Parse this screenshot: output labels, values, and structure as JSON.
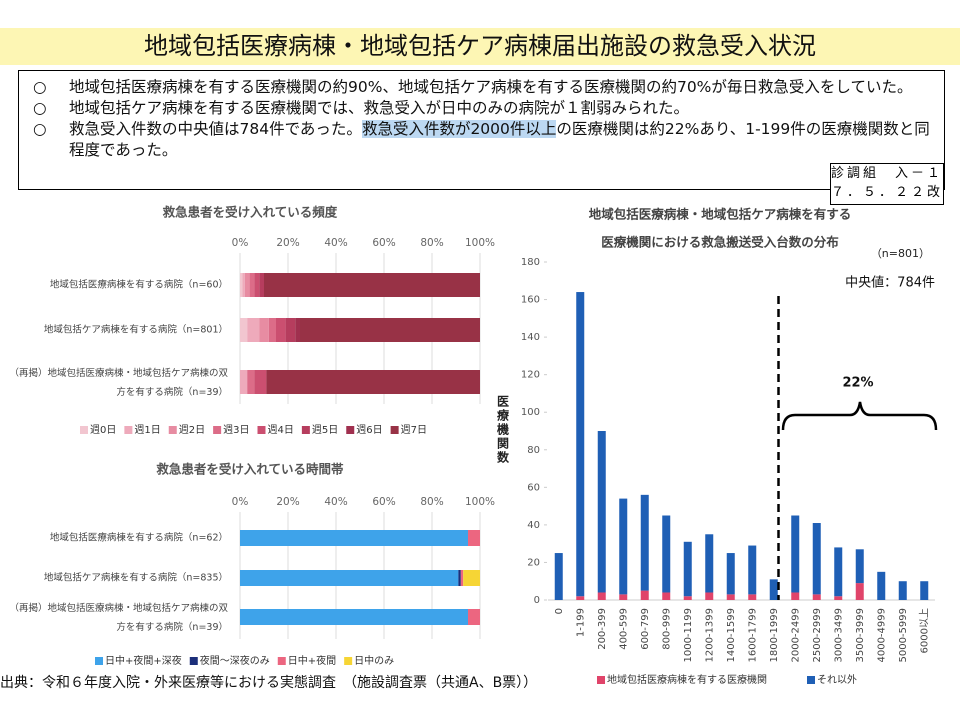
{
  "header": {
    "title": "地域包括医療病棟・地域包括ケア病棟届出施設の救急受入状況"
  },
  "bullet_mark": "○",
  "bullets": [
    [
      "地域包括医療病棟を有する医療機関の約90%、地域包括ケア病棟を有する医療機関の約70%が毎日救急受入をしていた。"
    ],
    [
      "地域包括ケア病棟を有する医療機関では、救急受入が日中のみの病院が１割弱みられた。"
    ],
    [
      "救急受入件数の中央値は784件であった。",
      "救急受入件数が2000件以上",
      "の医療機関は約22%あり、1-199件の医療機関数と同程度であった。"
    ]
  ],
  "highlighted_segment": {
    "bullet": 2,
    "segment": 1
  },
  "badge": [
    "診調組　入－１",
    "７．５．２２改"
  ],
  "source": "出典：令和６年度入院・外来医療等における実態調査　（施設調査票（共通A、B票））",
  "chart_data": [
    {
      "type": "barh",
      "stacked": true,
      "title": "救急患者を受け入れている頻度",
      "categories": [
        "地域包括医療病棟を有する病院（n=60）",
        "地域包括ケア病棟を有する病院（n=801）",
        "（再掲）地域包括医療病棟・地域包括ケア病棟の双方を有する病院（n=39）"
      ],
      "series": [
        {
          "name": "週0日",
          "color": "#f2c6d0",
          "values": [
            1,
            3,
            0
          ]
        },
        {
          "name": "週1日",
          "color": "#eeaabb",
          "values": [
            1,
            5,
            3
          ]
        },
        {
          "name": "週2日",
          "color": "#e78ca2",
          "values": [
            2,
            4,
            0
          ]
        },
        {
          "name": "週3日",
          "color": "#dc6c88",
          "values": [
            2,
            3,
            3
          ]
        },
        {
          "name": "週4日",
          "color": "#cb4f70",
          "values": [
            2,
            4,
            5
          ]
        },
        {
          "name": "週5日",
          "color": "#b63d5e",
          "values": [
            2,
            4,
            0
          ]
        },
        {
          "name": "週6日",
          "color": "#a0304f",
          "values": [
            0,
            2,
            0
          ]
        },
        {
          "name": "週7日",
          "color": "#983246",
          "values": [
            90,
            75,
            89
          ]
        }
      ],
      "xlim": [
        0,
        100
      ],
      "xticks": [
        {
          "value": 0,
          "label": "0%"
        },
        {
          "value": 20,
          "label": "20%"
        },
        {
          "value": 40,
          "label": "40%"
        },
        {
          "value": 60,
          "label": "60%"
        },
        {
          "value": 80,
          "label": "80%"
        },
        {
          "value": 100,
          "label": "100%"
        }
      ],
      "grid": true
    },
    {
      "type": "barh",
      "stacked": true,
      "title": "救急患者を受け入れている時間帯",
      "categories": [
        "地域包括医療病棟を有する病院（n=62）",
        "地域包括ケア病棟を有する病院（n=835）",
        "（再掲）地域包括医療病棟・地域包括ケア病棟の双方を有する病院（n=39）"
      ],
      "series": [
        {
          "name": "日中+夜間+深夜",
          "color": "#3ea3ea",
          "values": [
            95,
            91,
            95
          ]
        },
        {
          "name": "夜間～深夜のみ",
          "color": "#1c2f7a",
          "values": [
            0,
            1,
            0
          ]
        },
        {
          "name": "日中+夜間",
          "color": "#ec6680",
          "values": [
            5,
            1,
            5
          ]
        },
        {
          "name": "日中のみ",
          "color": "#f6d535",
          "values": [
            0,
            7,
            0
          ]
        }
      ],
      "xlim": [
        0,
        100
      ],
      "xticks": [
        {
          "value": 0,
          "label": "0%"
        },
        {
          "value": 20,
          "label": "20%"
        },
        {
          "value": 40,
          "label": "40%"
        },
        {
          "value": 60,
          "label": "60%"
        },
        {
          "value": 80,
          "label": "80%"
        },
        {
          "value": 100,
          "label": "100%"
        }
      ],
      "grid": true
    },
    {
      "type": "bar",
      "stacked": true,
      "title": [
        "地域包括医療病棟・地域包括ケア病棟を有する",
        "医療機関における救急搬送受入台数の分布"
      ],
      "y_label": "医療機関数",
      "annotations": [
        "（n=801）",
        "中央値：784件",
        "22%"
      ],
      "categories": [
        "0",
        "1-199",
        "200-399",
        "400-599",
        "600-799",
        "800-999",
        "1000-1199",
        "1200-1399",
        "1400-1599",
        "1600-1799",
        "1800-1999",
        "2000-2499",
        "2500-2999",
        "3000-3499",
        "3500-3999",
        "4000-4999",
        "5000-5999",
        "6000以上"
      ],
      "series": [
        {
          "name": "地域包括医療病棟を有する医療機関",
          "color": "#e0446a",
          "values": [
            0,
            2,
            4,
            3,
            5,
            4,
            2,
            4,
            3,
            3,
            0,
            4,
            3,
            2,
            9,
            0,
            0,
            0
          ]
        },
        {
          "name": "それ以外",
          "color": "#1f5fb5",
          "values": [
            25,
            162,
            86,
            51,
            51,
            41,
            29,
            31,
            22,
            26,
            11,
            41,
            38,
            26,
            18,
            15,
            10,
            10
          ]
        }
      ],
      "ylim": [
        0,
        180
      ],
      "yticks": [
        0,
        20,
        40,
        60,
        80,
        100,
        120,
        140,
        160,
        180
      ],
      "grid": false
    }
  ]
}
